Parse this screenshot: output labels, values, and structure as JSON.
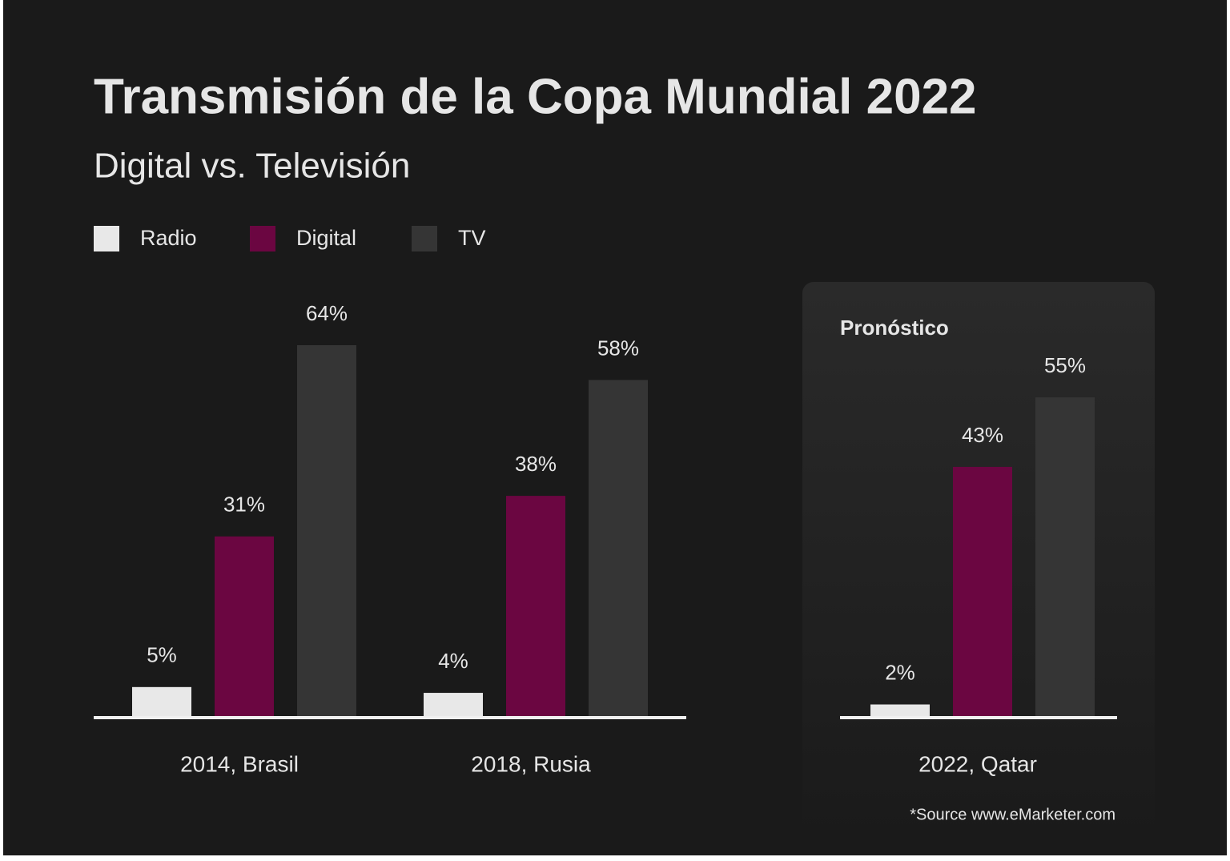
{
  "chart_data": {
    "type": "bar",
    "title": "Transmisión de la Copa Mundial 2022",
    "subtitle": "Digital vs. Televisión",
    "annotation": "Pronóstico",
    "source": "*Source www.eMarketer.com",
    "categories": [
      "2014, Brasil",
      "2018, Rusia",
      "2022, Qatar"
    ],
    "series": [
      {
        "name": "Radio",
        "color": "#e8e8e8",
        "values": [
          5,
          4,
          2
        ],
        "value_labels": [
          "5%",
          "4%",
          "2%"
        ]
      },
      {
        "name": "Digital",
        "color": "#6b0641",
        "values": [
          31,
          38,
          43
        ],
        "value_labels": [
          "31%",
          "38%",
          "43%"
        ]
      },
      {
        "name": "TV",
        "color": "#353535",
        "values": [
          64,
          58,
          55
        ],
        "value_labels": [
          "64%",
          "58%",
          "55%"
        ]
      }
    ]
  }
}
